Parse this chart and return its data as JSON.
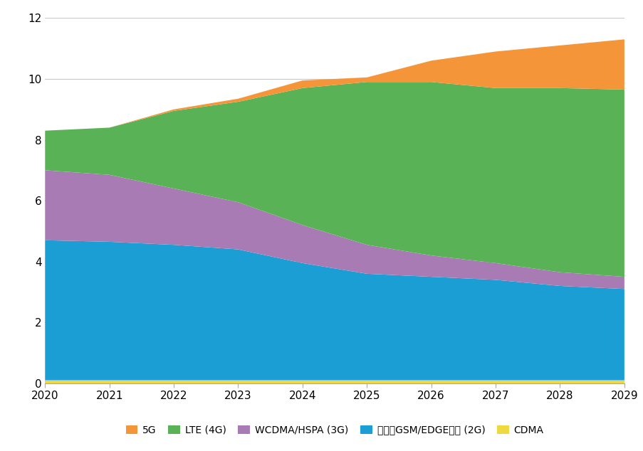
{
  "years": [
    2020,
    2021,
    2022,
    2023,
    2024,
    2025,
    2026,
    2027,
    2028,
    2029
  ],
  "cdma": [
    0.1,
    0.1,
    0.1,
    0.1,
    0.1,
    0.1,
    0.1,
    0.1,
    0.1,
    0.1
  ],
  "gsm_2g": [
    4.6,
    4.55,
    4.45,
    4.3,
    3.85,
    3.5,
    3.4,
    3.3,
    3.1,
    3.0
  ],
  "wcdma_3g": [
    2.3,
    2.2,
    1.85,
    1.55,
    1.25,
    0.95,
    0.7,
    0.55,
    0.45,
    0.4
  ],
  "lte_4g": [
    1.3,
    1.55,
    2.55,
    3.3,
    4.5,
    5.35,
    5.7,
    5.75,
    6.05,
    6.15
  ],
  "fiveg": [
    0.0,
    0.0,
    0.05,
    0.1,
    0.25,
    0.15,
    0.7,
    1.2,
    1.4,
    1.65
  ],
  "colors": {
    "cdma": "#F0D840",
    "gsm_2g": "#1B9ED4",
    "wcdma_3g": "#A97BB5",
    "lte_4g": "#5AB257",
    "fiveg": "#F5953A"
  },
  "labels": {
    "cdma": "CDMA",
    "gsm_2g": "仅使用GSM/EDGE网络 (2G)",
    "wcdma_3g": "WCDMA/HSPA (3G)",
    "lte_4g": "LTE (4G)",
    "fiveg": "5G"
  },
  "ylim": [
    0,
    12
  ],
  "yticks": [
    0,
    2,
    4,
    6,
    8,
    10,
    12
  ],
  "background_color": "#ffffff",
  "grid_color": "#c8c8c8"
}
